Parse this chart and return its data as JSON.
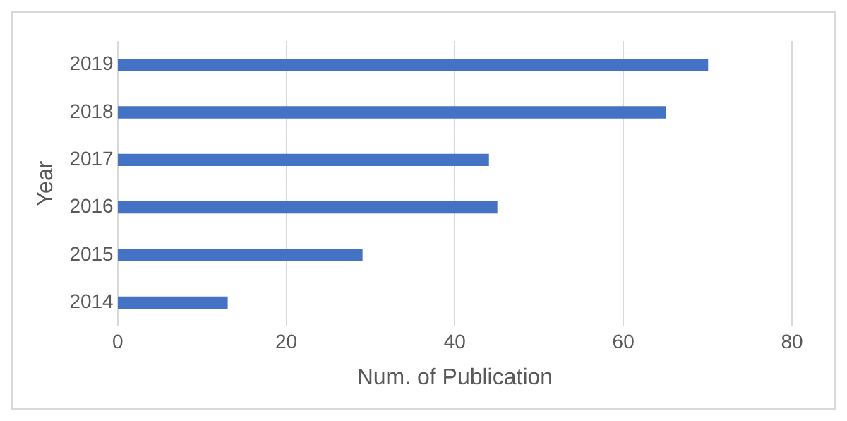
{
  "chart_data": {
    "type": "bar",
    "orientation": "horizontal",
    "xlabel": "Num. of Publication",
    "ylabel": "Year",
    "categories": [
      "2019",
      "2018",
      "2017",
      "2016",
      "2015",
      "2014"
    ],
    "values": [
      70,
      65,
      44,
      45,
      29,
      13
    ],
    "color": "#4472c4",
    "xlim": [
      0,
      80
    ],
    "xticks": [
      0,
      20,
      40,
      60,
      80
    ],
    "grid": "x",
    "legend": false
  }
}
